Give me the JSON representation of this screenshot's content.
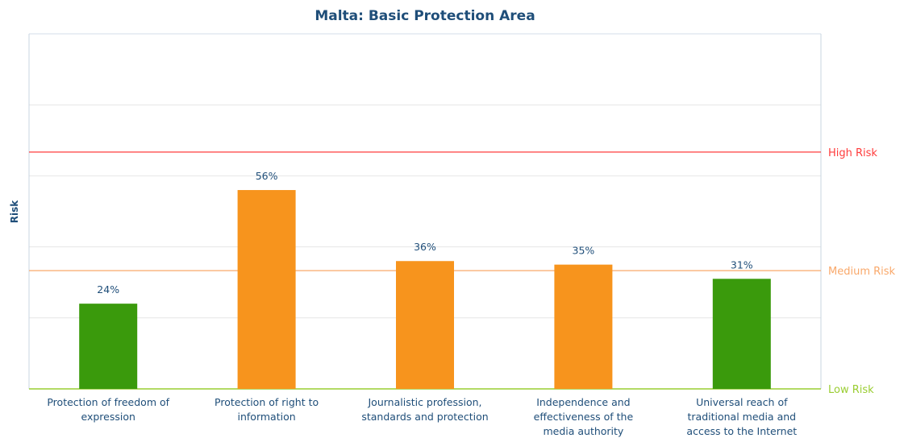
{
  "chart_data": {
    "type": "bar",
    "title": "Malta: Basic Protection Area",
    "ylabel": "Risk",
    "xlabel": "",
    "ylim": [
      0,
      100
    ],
    "categories": [
      [
        "Protection of freedom of",
        "expression"
      ],
      [
        "Protection of right to",
        "information"
      ],
      [
        "Journalistic profession,",
        "standards and protection"
      ],
      [
        "Independence and",
        "effectiveness of the",
        "media authority"
      ],
      [
        "Universal reach of",
        "traditional media and",
        "access to the Internet"
      ]
    ],
    "values": [
      24,
      56,
      36,
      35,
      31
    ],
    "value_labels": [
      "24%",
      "56%",
      "36%",
      "35%",
      "31%"
    ],
    "bar_colors": [
      "#3a9a0c",
      "#f7941d",
      "#f7941d",
      "#f7941d",
      "#3a9a0c"
    ],
    "risk_levels": [
      {
        "label": "High Risk",
        "value": 66.7,
        "color": "#ff3b3b"
      },
      {
        "label": "Medium Risk",
        "value": 33.3,
        "color": "#f9a86a"
      },
      {
        "label": "Low Risk",
        "value": 0,
        "color": "#9acd32"
      }
    ],
    "grid": true
  }
}
